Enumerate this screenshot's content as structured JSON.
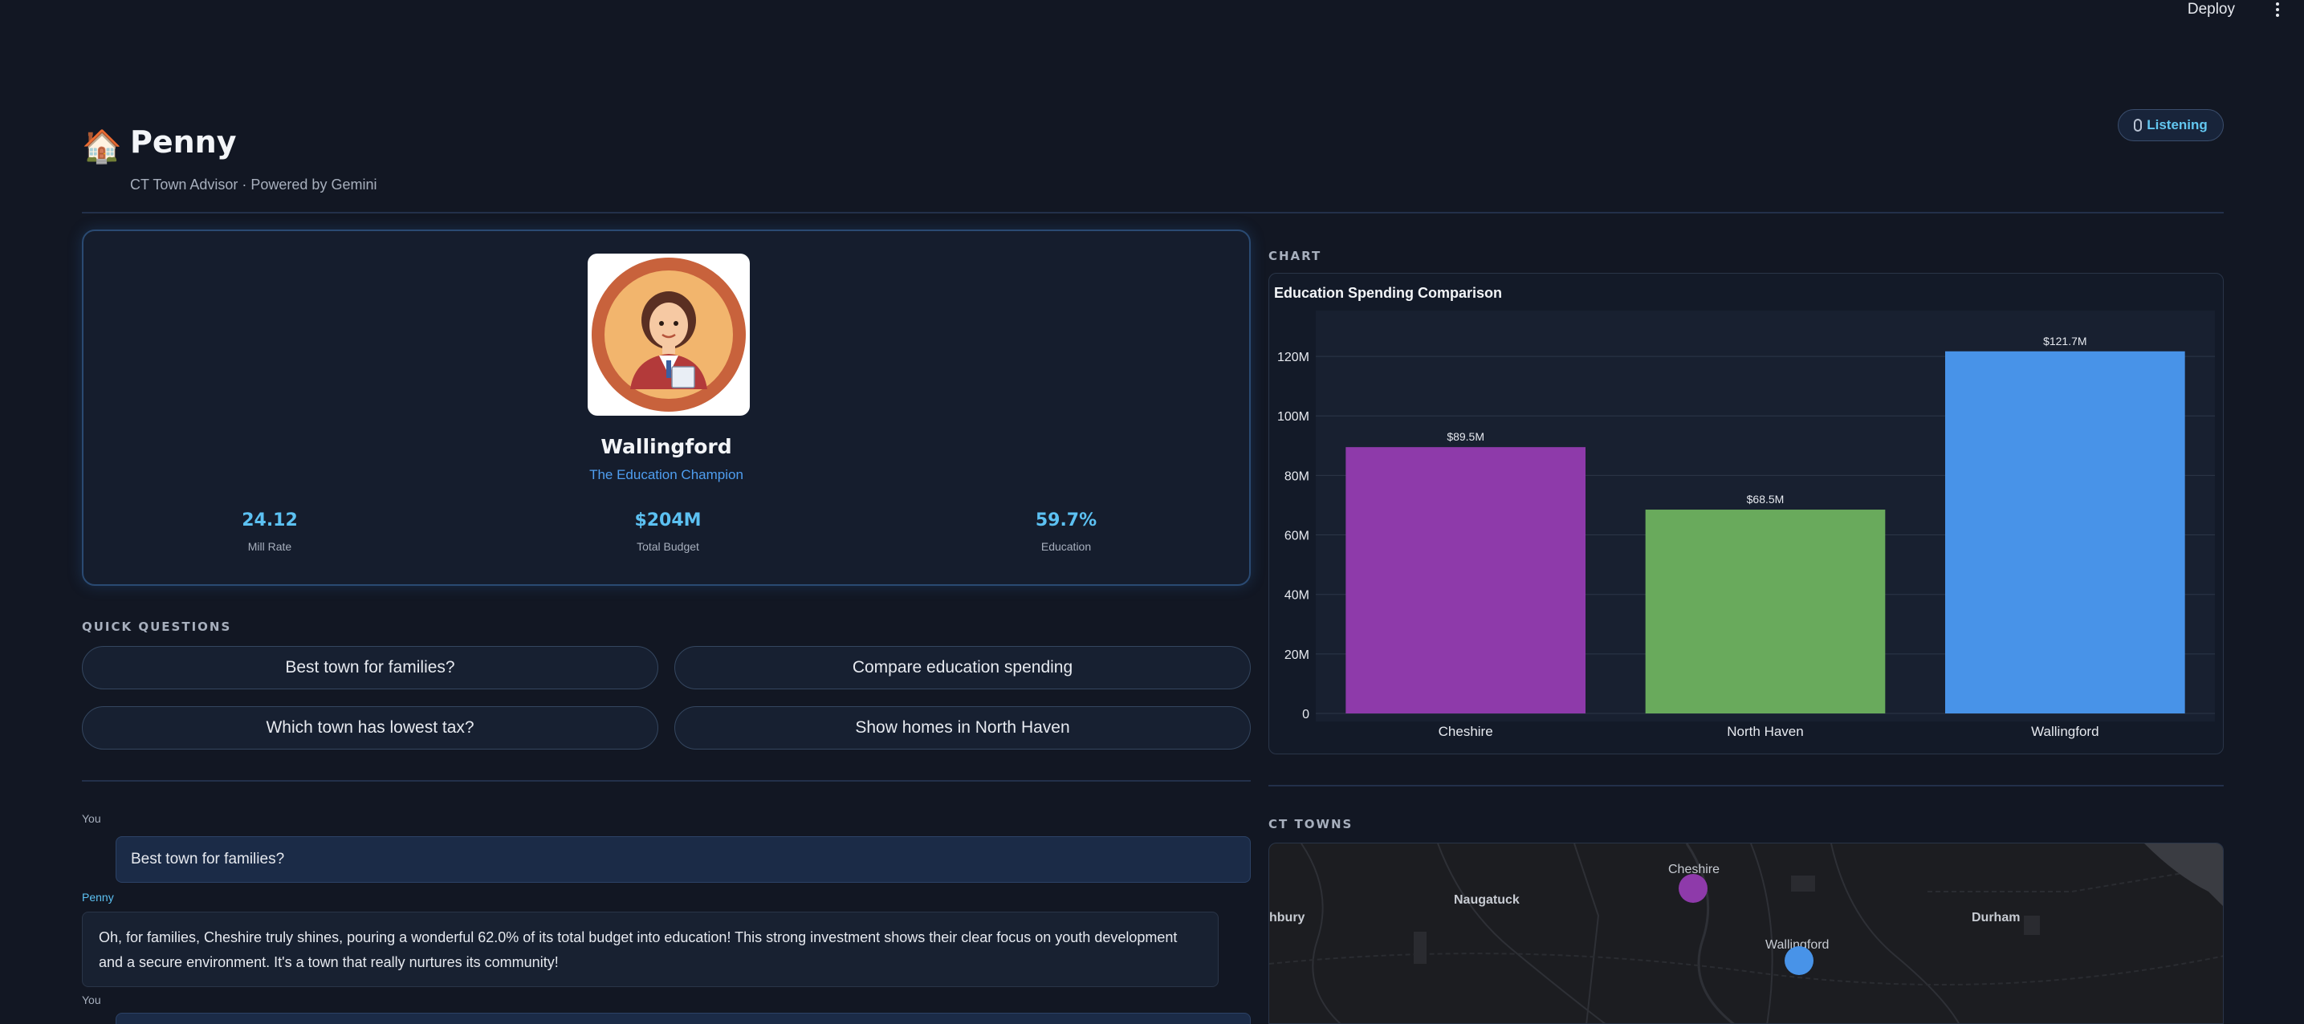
{
  "topbar": {
    "deploy_label": "Deploy"
  },
  "header": {
    "title": "Penny",
    "subtitle": "CT Town Advisor · Powered by Gemini",
    "status_label": "Listening"
  },
  "profile": {
    "town": "Wallingford",
    "tagline": "The Education Champion",
    "stats": [
      {
        "value": "24.12",
        "label": "Mill Rate"
      },
      {
        "value": "$204M",
        "label": "Total Budget"
      },
      {
        "value": "59.7%",
        "label": "Education"
      }
    ]
  },
  "quick_questions": {
    "label": "QUICK QUESTIONS",
    "items": [
      "Best town for families?",
      "Compare education spending",
      "Which town has lowest tax?",
      "Show homes in North Haven"
    ]
  },
  "chat": {
    "messages": [
      {
        "role": "You",
        "text": "Best town for families?"
      },
      {
        "role": "Penny",
        "text": "Oh, for families, Cheshire truly shines, pouring a wonderful 62.0% of its total budget into education! This strong investment shows their clear focus on youth development and a secure environment. It's a town that really nurtures its community!"
      },
      {
        "role": "You",
        "text": ""
      }
    ]
  },
  "chart_section": {
    "label": "CHART"
  },
  "chart_data": {
    "type": "bar",
    "title": "Education Spending Comparison",
    "categories": [
      "Cheshire",
      "North Haven",
      "Wallingford"
    ],
    "values": [
      89.5,
      68.5,
      121.7
    ],
    "value_labels": [
      "$89.5M",
      "$68.5M",
      "$121.7M"
    ],
    "colors": [
      "#8e3aaa",
      "#69aa5c",
      "#4893e8"
    ],
    "ylim": [
      0,
      130
    ],
    "yticks": [
      0,
      20,
      40,
      60,
      80,
      100,
      120
    ],
    "ytick_labels": [
      "0",
      "20M",
      "40M",
      "60M",
      "80M",
      "100M",
      "120M"
    ],
    "grid": true
  },
  "map_section": {
    "label": "CT TOWNS",
    "place_labels": [
      "Naugatuck",
      "hbury",
      "Durham"
    ],
    "towns": [
      {
        "name": "Cheshire",
        "color": "#8e3aaa"
      },
      {
        "name": "Wallingford",
        "color": "#4893e8"
      }
    ]
  }
}
